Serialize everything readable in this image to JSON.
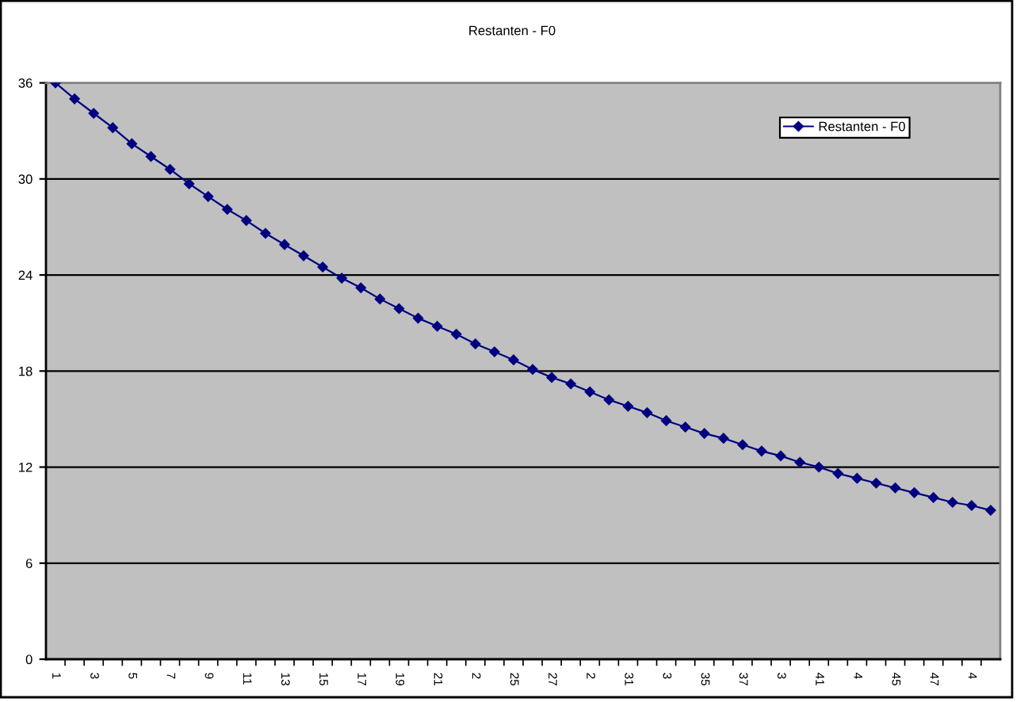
{
  "chart_data": {
    "type": "line",
    "title": "Restanten - F0",
    "categories": [
      "1",
      null,
      "3",
      null,
      "5",
      null,
      "7",
      null,
      "9",
      null,
      "11",
      null,
      "13",
      null,
      "15",
      null,
      "17",
      null,
      "19",
      null,
      "21",
      null,
      "2",
      null,
      "25",
      null,
      "27",
      null,
      "2",
      null,
      "31",
      null,
      "3",
      null,
      "35",
      null,
      "37",
      null,
      "3",
      null,
      "41",
      null,
      "4",
      null,
      "45",
      null,
      "47",
      null,
      "4",
      null
    ],
    "series": [
      {
        "name": "Restanten - F0",
        "color": "#000080",
        "values": [
          36.0,
          35.0,
          34.1,
          33.2,
          32.2,
          31.4,
          30.6,
          29.7,
          28.9,
          28.1,
          27.4,
          26.6,
          25.9,
          25.2,
          24.5,
          23.8,
          23.2,
          22.5,
          21.9,
          21.3,
          20.8,
          20.3,
          19.7,
          19.2,
          18.7,
          18.1,
          17.6,
          17.2,
          16.7,
          16.2,
          15.8,
          15.4,
          14.9,
          14.5,
          14.1,
          13.8,
          13.4,
          13.0,
          12.7,
          12.3,
          12.0,
          11.6,
          11.3,
          11.0,
          10.7,
          10.4,
          10.1,
          9.8,
          9.6,
          9.3
        ]
      }
    ],
    "ylim": [
      0,
      36
    ],
    "yticks": [
      0,
      6,
      12,
      18,
      24,
      30,
      36
    ],
    "grid": "y",
    "legend": "top right",
    "marker": "diamond",
    "line_style": "solid"
  }
}
